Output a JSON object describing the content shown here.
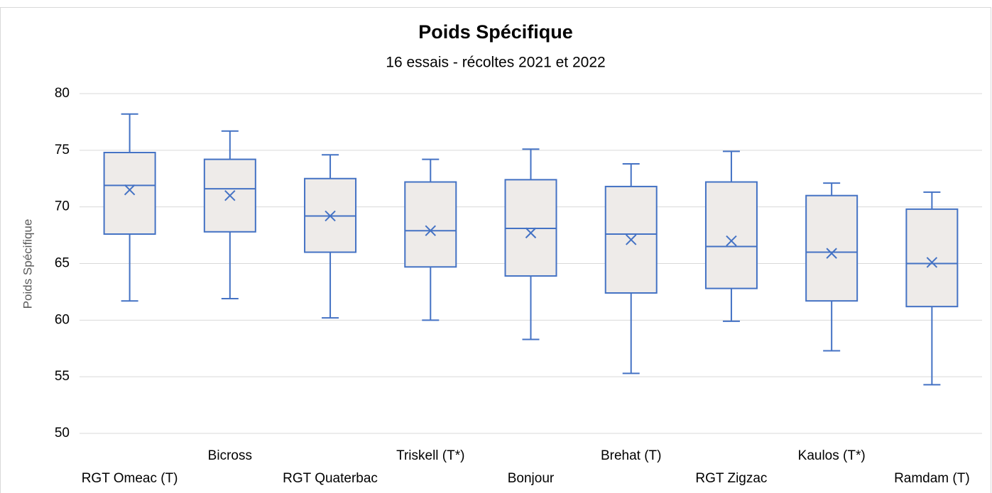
{
  "chart_data": {
    "type": "box",
    "title": "Poids Spécifique",
    "subtitle": "16 essais - récoltes 2021 et 2022",
    "y_label": "Poids Spécifique",
    "categories": [
      "RGT Omeac (T)",
      "Bicross",
      "RGT Quaterbac",
      "Triskell (T*)",
      "Bonjour",
      "Brehat (T)",
      "RGT Zigzac",
      "Kaulos (T*)",
      "Ramdam (T)"
    ],
    "min": [
      61.7,
      61.9,
      60.2,
      60.0,
      58.3,
      55.3,
      59.9,
      57.3,
      54.3
    ],
    "q1": [
      67.6,
      67.8,
      66.0,
      64.7,
      63.9,
      62.4,
      62.8,
      61.7,
      61.2
    ],
    "median": [
      71.9,
      71.6,
      69.2,
      67.9,
      68.1,
      67.6,
      66.5,
      66.0,
      65.0
    ],
    "q3": [
      74.8,
      74.2,
      72.5,
      72.2,
      72.4,
      71.8,
      72.2,
      71.0,
      69.8
    ],
    "max": [
      78.2,
      76.7,
      74.6,
      74.2,
      75.1,
      73.8,
      74.9,
      72.1,
      71.3
    ],
    "mean": [
      71.5,
      71.0,
      69.2,
      67.9,
      67.7,
      67.1,
      67.0,
      65.9,
      65.1
    ],
    "color": "#4472c4",
    "fill": "#eeebe9",
    "ylim": [
      50,
      80
    ],
    "yticks": [
      50,
      55,
      60,
      65,
      70,
      75,
      80
    ],
    "grid": true
  }
}
